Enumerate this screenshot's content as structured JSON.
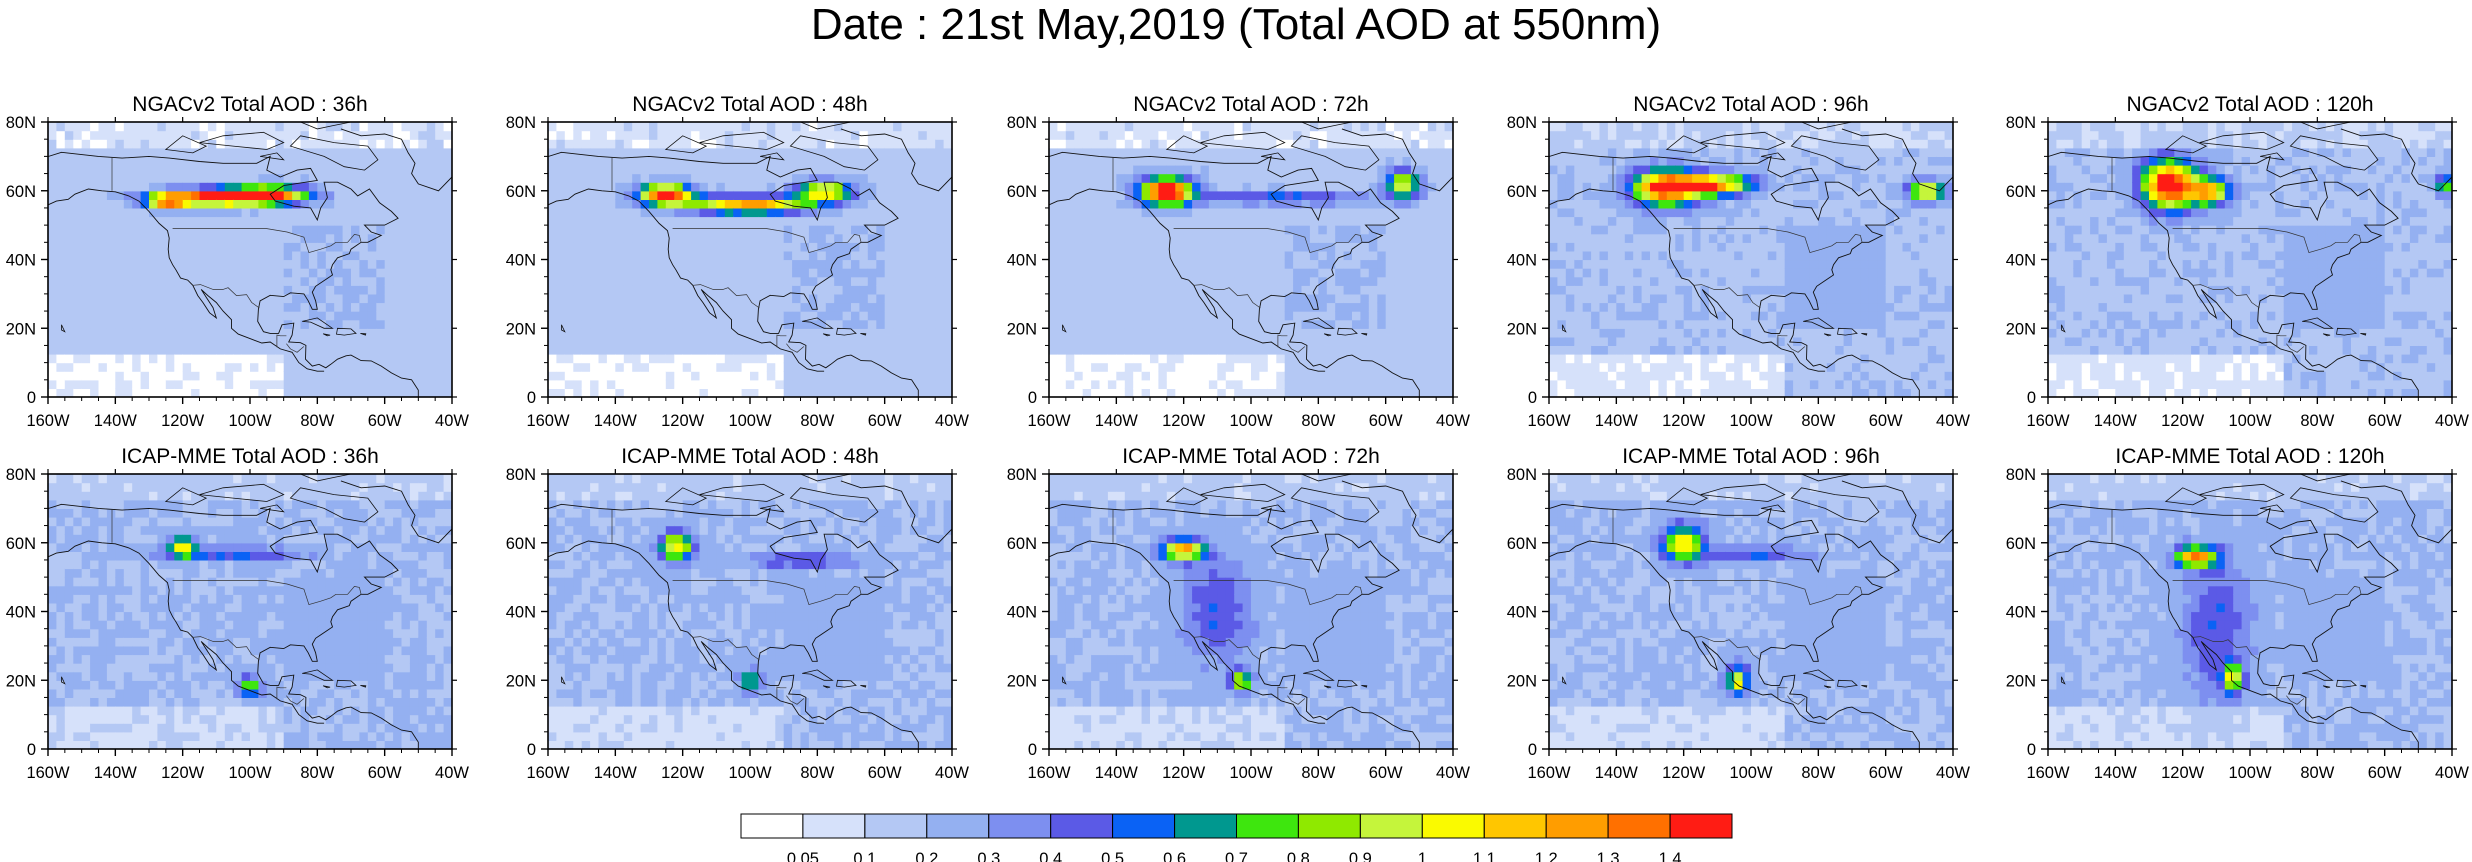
{
  "page": {
    "title": "Date : 21st May,2019 (Total AOD at 550nm)"
  },
  "panels": [
    {
      "title": "NGACv2 Total AOD : 36h",
      "model": "NGACv2",
      "hour": 36,
      "plumes": [
        {
          "lon": -112,
          "lat": 58,
          "w": 16,
          "h": 2.5,
          "aod": 1.25
        },
        {
          "lon": -95,
          "lat": 59,
          "w": 12,
          "h": 2.5,
          "aod": 1.3
        },
        {
          "lon": -125,
          "lat": 57,
          "w": 6,
          "h": 2,
          "aod": 0.9
        }
      ],
      "bg": 0.15
    },
    {
      "title": "NGACv2 Total AOD : 48h",
      "model": "NGACv2",
      "hour": 48,
      "plumes": [
        {
          "lon": -125,
          "lat": 59,
          "w": 8,
          "h": 3,
          "aod": 1.4
        },
        {
          "lon": -100,
          "lat": 56,
          "w": 18,
          "h": 2.5,
          "aod": 1.1
        },
        {
          "lon": -78,
          "lat": 60,
          "w": 8,
          "h": 3,
          "aod": 1.0
        }
      ],
      "bg": 0.15
    },
    {
      "title": "NGACv2 Total AOD : 72h",
      "model": "NGACv2",
      "hour": 72,
      "plumes": [
        {
          "lon": -125,
          "lat": 60,
          "w": 8,
          "h": 4,
          "aod": 1.45
        },
        {
          "lon": -55,
          "lat": 62,
          "w": 5,
          "h": 4,
          "aod": 0.9
        },
        {
          "lon": -90,
          "lat": 58,
          "w": 25,
          "h": 2,
          "aod": 0.4
        }
      ],
      "bg": 0.15
    },
    {
      "title": "NGACv2 Total AOD : 96h",
      "model": "NGACv2",
      "hour": 96,
      "plumes": [
        {
          "lon": -125,
          "lat": 61,
          "w": 10,
          "h": 5,
          "aod": 1.35
        },
        {
          "lon": -110,
          "lat": 62,
          "w": 10,
          "h": 3,
          "aod": 1.1
        },
        {
          "lon": -48,
          "lat": 60,
          "w": 5,
          "h": 3,
          "aod": 1.0
        }
      ],
      "bg": 0.18
    },
    {
      "title": "NGACv2 Total AOD : 120h",
      "model": "NGACv2",
      "hour": 120,
      "plumes": [
        {
          "lon": -124,
          "lat": 62,
          "w": 8,
          "h": 7,
          "aod": 1.4
        },
        {
          "lon": -112,
          "lat": 60,
          "w": 6,
          "h": 4,
          "aod": 1.0
        },
        {
          "lon": -42,
          "lat": 62,
          "w": 3,
          "h": 3,
          "aod": 0.6
        }
      ],
      "bg": 0.18
    },
    {
      "title": "ICAP-MME Total AOD : 36h",
      "model": "ICAP-MME",
      "hour": 36,
      "plumes": [
        {
          "lon": -120,
          "lat": 59,
          "w": 4,
          "h": 3,
          "aod": 0.8
        },
        {
          "lon": -100,
          "lat": 18,
          "w": 3,
          "h": 3,
          "aod": 0.7
        },
        {
          "lon": -105,
          "lat": 57,
          "w": 20,
          "h": 2,
          "aod": 0.35
        }
      ],
      "bg": 0.2
    },
    {
      "title": "ICAP-MME Total AOD : 48h",
      "model": "ICAP-MME",
      "hour": 48,
      "plumes": [
        {
          "lon": -122,
          "lat": 59,
          "w": 5,
          "h": 4,
          "aod": 0.9
        },
        {
          "lon": -100,
          "lat": 20,
          "w": 3,
          "h": 3,
          "aod": 0.6
        },
        {
          "lon": -85,
          "lat": 55,
          "w": 15,
          "h": 2,
          "aod": 0.35
        }
      ],
      "bg": 0.2
    },
    {
      "title": "ICAP-MME Total AOD : 72h",
      "model": "ICAP-MME",
      "hour": 72,
      "plumes": [
        {
          "lon": -120,
          "lat": 58,
          "w": 6,
          "h": 3,
          "aod": 1.1
        },
        {
          "lon": -103,
          "lat": 20,
          "w": 3,
          "h": 3,
          "aod": 0.8
        },
        {
          "lon": -110,
          "lat": 40,
          "w": 10,
          "h": 15,
          "aod": 0.3
        }
      ],
      "bg": 0.2
    },
    {
      "title": "ICAP-MME Total AOD : 96h",
      "model": "ICAP-MME",
      "hour": 96,
      "plumes": [
        {
          "lon": -120,
          "lat": 60,
          "w": 6,
          "h": 5,
          "aod": 0.9
        },
        {
          "lon": -104,
          "lat": 20,
          "w": 3,
          "h": 4,
          "aod": 0.9
        },
        {
          "lon": -100,
          "lat": 57,
          "w": 15,
          "h": 2,
          "aod": 0.35
        }
      ],
      "bg": 0.2
    },
    {
      "title": "ICAP-MME Total AOD : 120h",
      "model": "ICAP-MME",
      "hour": 120,
      "plumes": [
        {
          "lon": -116,
          "lat": 56,
          "w": 6,
          "h": 3,
          "aod": 1.1
        },
        {
          "lon": -105,
          "lat": 21,
          "w": 3,
          "h": 4,
          "aod": 0.8
        },
        {
          "lon": -110,
          "lat": 35,
          "w": 10,
          "h": 20,
          "aod": 0.3
        }
      ],
      "bg": 0.2
    }
  ],
  "axes": {
    "lon_range": [
      -160,
      -40
    ],
    "lat_range": [
      0,
      80
    ],
    "x_ticks": [
      "160W",
      "140W",
      "120W",
      "100W",
      "80W",
      "60W",
      "40W"
    ],
    "y_ticks": [
      "0",
      "20N",
      "40N",
      "60N",
      "80N"
    ]
  },
  "colorbar": {
    "colors": [
      "#ffffff",
      "#d6e1fa",
      "#b4c8f4",
      "#94b0f1",
      "#7d8ff0",
      "#5b5ae6",
      "#0a62f5",
      "#00988f",
      "#3ee60e",
      "#8fe900",
      "#c5f53b",
      "#fafa00",
      "#ffc600",
      "#ff9d00",
      "#ff7000",
      "#ff1c14"
    ],
    "labels": [
      "0.05",
      "0.1",
      "0.2",
      "0.3",
      "0.4",
      "0.5",
      "0.6",
      "0.7",
      "0.8",
      "0.9",
      "1",
      "1.1",
      "1.2",
      "1.3",
      "1.4"
    ],
    "levels": [
      0.05,
      0.1,
      0.2,
      0.3,
      0.4,
      0.5,
      0.6,
      0.7,
      0.8,
      0.9,
      1,
      1.1,
      1.2,
      1.3,
      1.4
    ]
  },
  "map_colors": {
    "frame": "#000000",
    "coast": "#111111",
    "border": "#333333"
  }
}
